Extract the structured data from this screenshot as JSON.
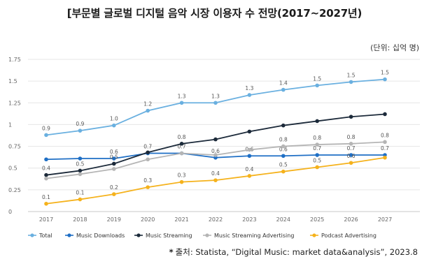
{
  "title": "[부문별 글로벌 디지털 음악 시장 이용자 수 전망(2017~2027년)",
  "unit_label": "(단위: 십억 명)",
  "source": {
    "bullet": "*",
    "text": "출처: Statista, “Digital Music: market data&analysis”, 2023.8"
  },
  "chart_data": {
    "type": "line",
    "title": "[부문별 글로벌 디지털 음악 시장 이용자 수 전망(2017~2027년)",
    "xlabel": "",
    "ylabel": "",
    "ylim": [
      0,
      1.75
    ],
    "yticks": [
      0,
      0.25,
      0.5,
      0.75,
      1,
      1.25,
      1.5,
      1.75
    ],
    "ytick_labels": [
      "0",
      "0.25",
      "0.5",
      "0.75",
      "1",
      "1.25",
      "1.5",
      "1.75"
    ],
    "grid": true,
    "legend_position": "bottom",
    "categories": [
      "2017",
      "2018",
      "2019",
      "2020",
      "2021",
      "2022",
      "2023",
      "2024",
      "2025",
      "2026",
      "2027"
    ],
    "series": [
      {
        "name": "Total",
        "color": "#6ab0e0",
        "values": [
          0.88,
          0.93,
          0.99,
          1.16,
          1.25,
          1.25,
          1.34,
          1.4,
          1.45,
          1.49,
          1.52
        ],
        "labels": [
          "0.9",
          "0.9",
          "1.0",
          "1.2",
          "1.3",
          "1.3",
          "1.3",
          "1.4",
          "1.5",
          "1.5",
          "1.5"
        ],
        "label_pos": "above"
      },
      {
        "name": "Music Downloads",
        "color": "#1f6fc5",
        "values": [
          0.6,
          0.61,
          0.61,
          0.67,
          0.67,
          0.62,
          0.64,
          0.64,
          0.65,
          0.65,
          0.65
        ],
        "labels": [
          "",
          "",
          "0.6",
          "0.7",
          "0.7",
          "0.6",
          "0.6",
          "0.6",
          "0.7",
          "0.7",
          "0.7"
        ],
        "label_pos": "above"
      },
      {
        "name": "Music Streaming",
        "color": "#1c2a3a",
        "values": [
          0.42,
          0.47,
          0.55,
          0.68,
          0.78,
          0.83,
          0.92,
          0.99,
          1.04,
          1.09,
          1.12
        ],
        "labels": [
          "0.4",
          "0.5",
          "0.5",
          "",
          "0.8",
          "",
          "",
          "",
          "",
          "",
          ""
        ],
        "label_pos": "above"
      },
      {
        "name": "Music Streaming Advertising",
        "color": "#b5b5b5",
        "values": [
          0.38,
          0.43,
          0.49,
          0.6,
          0.67,
          0.65,
          0.71,
          0.75,
          0.77,
          0.78,
          0.8
        ],
        "labels": [
          "",
          "",
          "",
          "",
          "",
          "",
          "",
          "0.8",
          "0.8",
          "0.8",
          "0.8"
        ],
        "label_pos": "above"
      },
      {
        "name": "Podcast Advertising",
        "color": "#f5b21c",
        "values": [
          0.09,
          0.14,
          0.2,
          0.28,
          0.34,
          0.36,
          0.41,
          0.46,
          0.51,
          0.56,
          0.62
        ],
        "labels": [
          "0.1",
          "0.1",
          "0.2",
          "0.3",
          "0.3",
          "0.4",
          "0.4",
          "0.5",
          "0.5",
          "0.6",
          ""
        ],
        "label_pos": "above"
      }
    ]
  }
}
